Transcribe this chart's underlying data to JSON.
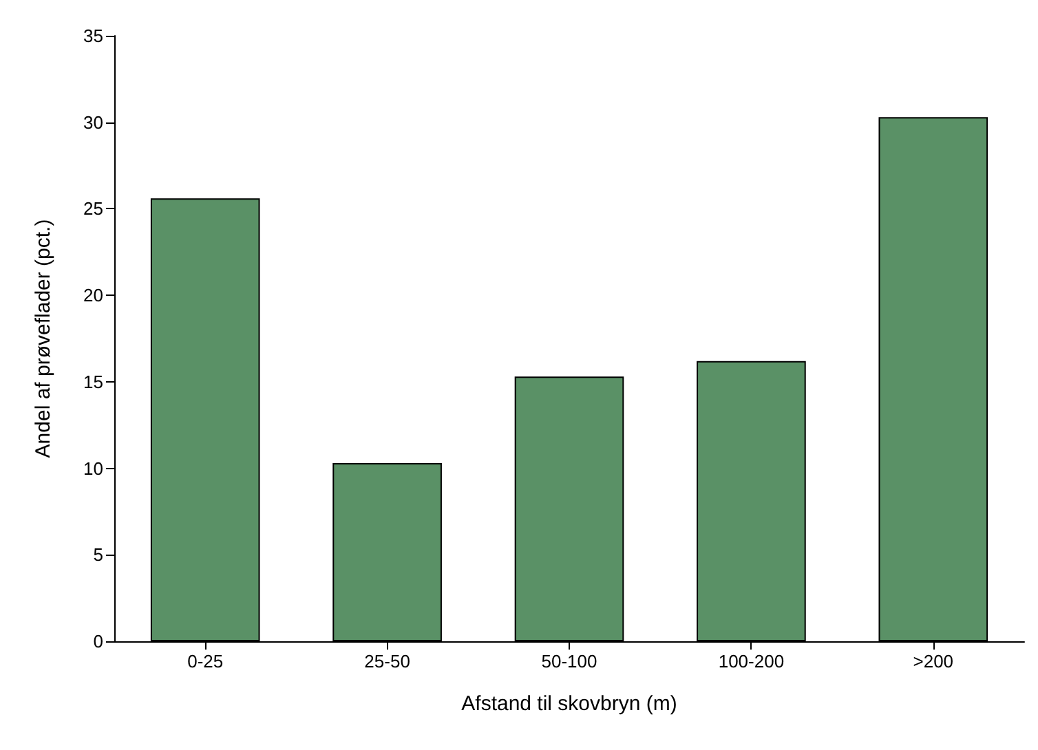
{
  "chart_data": {
    "type": "bar",
    "xlabel": "Afstand til skovbryn (m)",
    "ylabel": "Andel af prøveflader (pct.)",
    "categories": [
      "0-25",
      "25-50",
      "50-100",
      "100-200",
      ">200"
    ],
    "values": [
      25.6,
      10.3,
      15.3,
      16.2,
      30.3
    ],
    "color": "#5a9166",
    "ylim": [
      0,
      35
    ],
    "yticks": [
      0,
      5,
      10,
      15,
      20,
      25,
      30,
      35
    ],
    "grid": false
  }
}
